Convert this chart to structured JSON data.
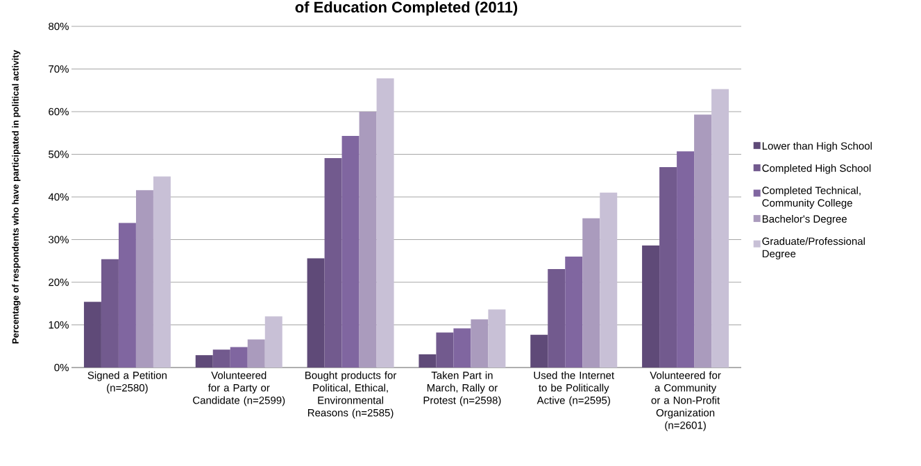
{
  "chart_data": {
    "type": "bar",
    "title": "of Education Completed (2011)",
    "ylabel": "Percentage of respondents who have participated in political activity",
    "categories": [
      "Signed a Petition (n=2580)",
      "Volunteered for a Party or Candidate (n=2599)",
      "Bought products for Political, Ethical, Environmental Reasons (n=2585)",
      "Taken Part in March, Rally or Protest (n=2598)",
      "Used the Internet to be Politically Active (n=2595)",
      "Volunteered for a Community or a Non-Profit Organization (n=2601)"
    ],
    "series": [
      {
        "name": "Lower than High School",
        "color": "#5f4a78",
        "values": [
          15.4,
          2.9,
          25.6,
          3.1,
          7.7,
          28.6
        ]
      },
      {
        "name": "Completed High School",
        "color": "#725a8e",
        "values": [
          25.4,
          4.2,
          49.1,
          8.2,
          23.1,
          47.0
        ]
      },
      {
        "name": "Completed Technical, Community College",
        "color": "#8066a0",
        "values": [
          33.9,
          4.8,
          54.3,
          9.2,
          26.0,
          50.7
        ]
      },
      {
        "name": "Bachelor's Degree",
        "color": "#aa9bbd",
        "values": [
          41.6,
          6.6,
          60.0,
          11.3,
          35.0,
          59.3
        ]
      },
      {
        "name": "Graduate/Professional Degree",
        "color": "#c8c0d6",
        "values": [
          44.8,
          12.0,
          67.8,
          13.6,
          41.0,
          65.3
        ]
      }
    ],
    "ylim": [
      0,
      80
    ],
    "yticks": [
      {
        "value": 0,
        "label": "0%"
      },
      {
        "value": 10,
        "label": "10%"
      },
      {
        "value": 20,
        "label": "20%"
      },
      {
        "value": 30,
        "label": "30%"
      },
      {
        "value": 40,
        "label": "40%"
      },
      {
        "value": 50,
        "label": "50%"
      },
      {
        "value": 60,
        "label": "60%"
      },
      {
        "value": 70,
        "label": "70%"
      },
      {
        "value": 80,
        "label": "80%"
      }
    ],
    "grid": "y",
    "legend": "right"
  }
}
